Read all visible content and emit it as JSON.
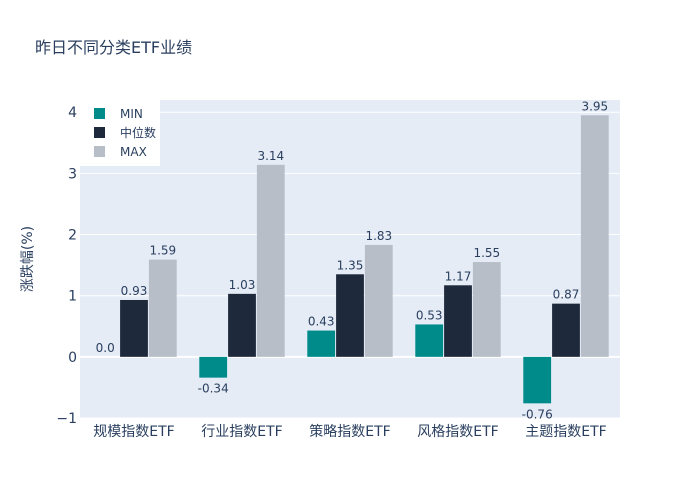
{
  "chart_data": {
    "type": "bar",
    "title": "昨日不同分类ETF业绩",
    "xlabel": "",
    "ylabel": "涨跌幅(%)",
    "ylim": [
      -1,
      4.2
    ],
    "yticks": [
      -1,
      0,
      1,
      2,
      3,
      4
    ],
    "ytick_labels": [
      "−1",
      "0",
      "1",
      "2",
      "3",
      "4"
    ],
    "categories": [
      "规模指数ETF",
      "行业指数ETF",
      "策略指数ETF",
      "风格指数ETF",
      "主题指数ETF"
    ],
    "series": [
      {
        "name": "MIN",
        "color": "#008b8b",
        "values": [
          0.0,
          -0.34,
          0.43,
          0.53,
          -0.76
        ],
        "labels": [
          "0.0",
          "-0.34",
          "0.43",
          "0.53",
          "-0.76"
        ]
      },
      {
        "name": "中位数",
        "color": "#1e293b",
        "values": [
          0.93,
          1.03,
          1.35,
          1.17,
          0.87
        ],
        "labels": [
          "0.93",
          "1.03",
          "1.35",
          "1.17",
          "0.87"
        ]
      },
      {
        "name": "MAX",
        "color": "#b8bec7",
        "values": [
          1.59,
          3.14,
          1.83,
          1.55,
          3.95
        ],
        "labels": [
          "1.59",
          "3.14",
          "1.83",
          "1.55",
          "3.95"
        ]
      }
    ],
    "legend_position": "top-left",
    "grid": true
  },
  "colors": {
    "plot_bg": "#e5ecf6",
    "grid": "#ffffff",
    "text": "#2a3f5f"
  }
}
